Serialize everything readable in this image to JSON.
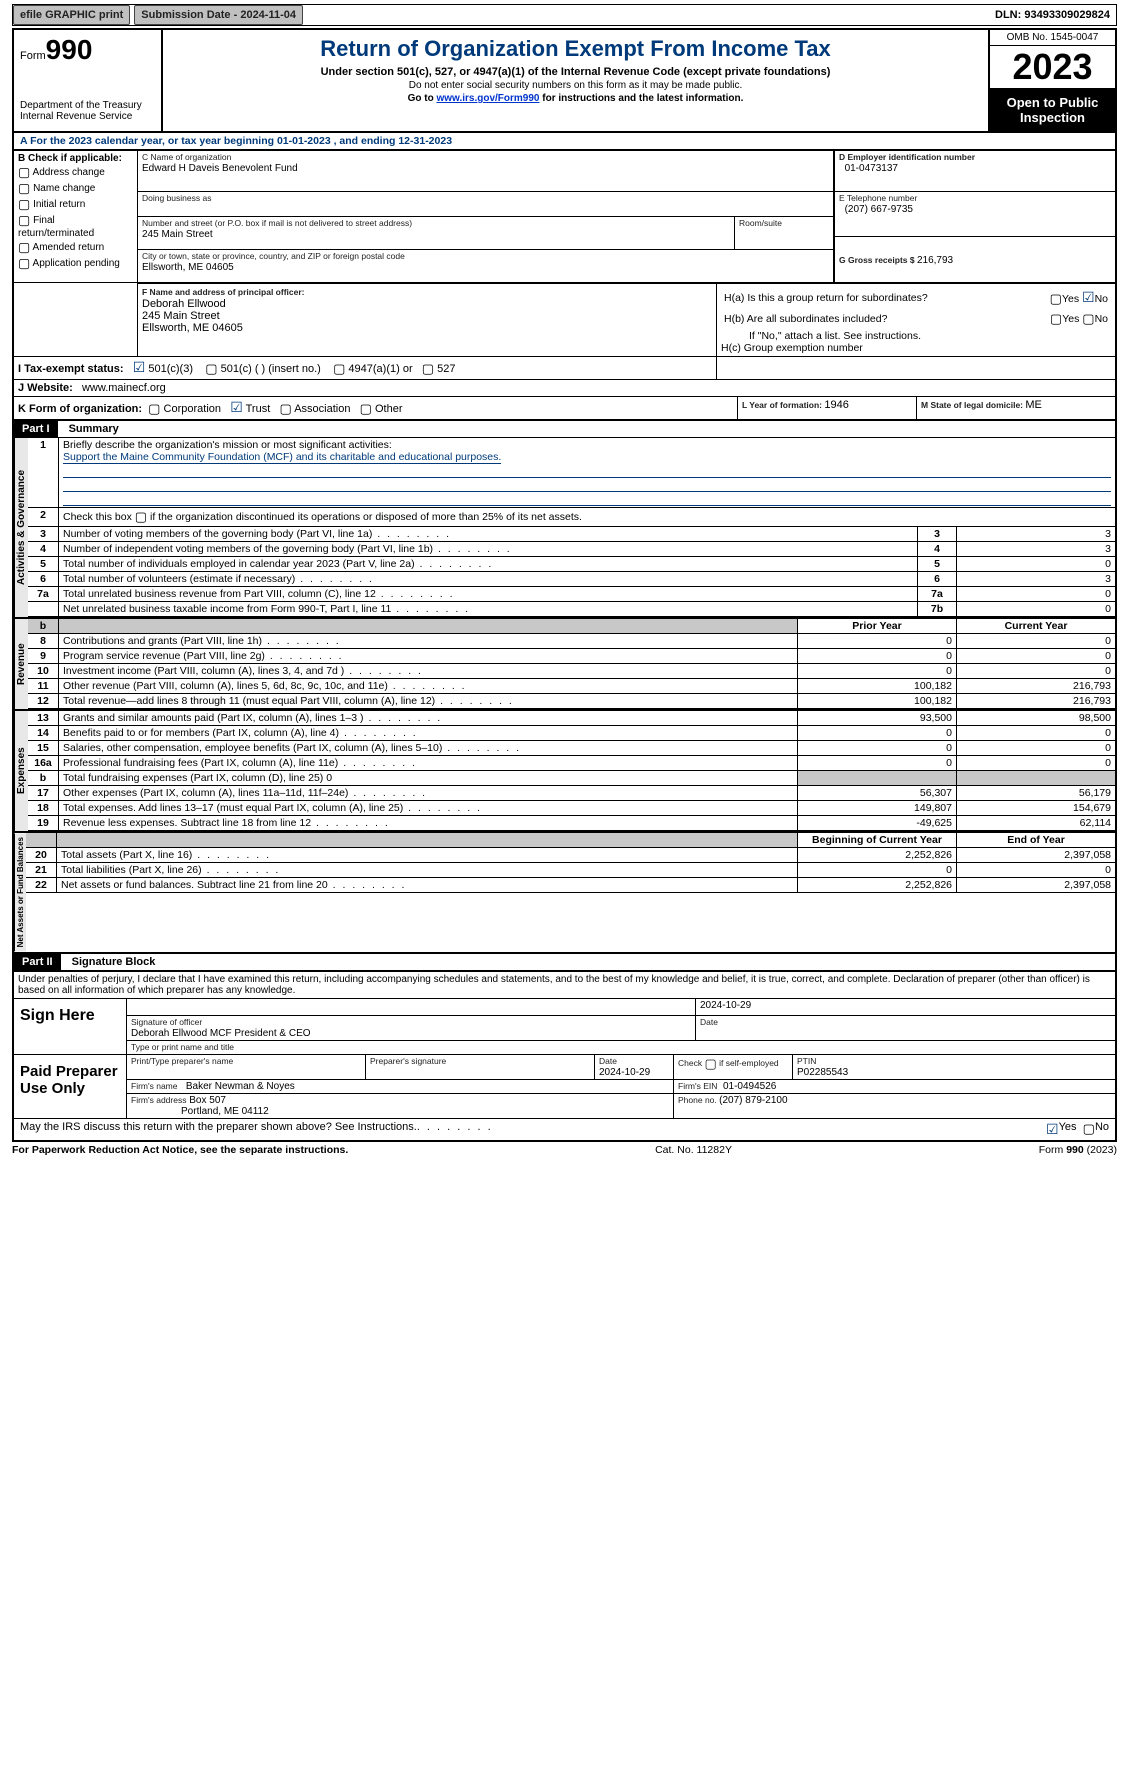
{
  "topbar": {
    "efile": "efile GRAPHIC print",
    "sub_label": "Submission Date - ",
    "sub_date": "2024-11-04",
    "dln_label": "DLN: ",
    "dln": "93493309029824"
  },
  "header": {
    "form_word": "Form",
    "form_num": "990",
    "dept": "Department of the Treasury Internal Revenue Service",
    "title": "Return of Organization Exempt From Income Tax",
    "subtitle": "Under section 501(c), 527, or 4947(a)(1) of the Internal Revenue Code (except private foundations)",
    "ssn_note": "Do not enter social security numbers on this form as it may be made public.",
    "goto_pre": "Go to ",
    "goto_link": "www.irs.gov/Form990",
    "goto_post": " for instructions and the latest information.",
    "omb": "OMB No. 1545-0047",
    "year": "2023",
    "open": "Open to Public Inspection"
  },
  "line_a": "A  For the 2023 calendar year, or tax year beginning 01-01-2023    , and ending 12-31-2023",
  "box_b": {
    "hdr": "B Check if applicable:",
    "items": [
      "Address change",
      "Name change",
      "Initial return",
      "Final return/terminated",
      "Amended return",
      "Application pending"
    ]
  },
  "box_c": {
    "name_lbl": "C Name of organization",
    "name": "Edward H Daveis Benevolent Fund",
    "dba_lbl": "Doing business as",
    "addr_lbl": "Number and street (or P.O. box if mail is not delivered to street address)",
    "addr": "245 Main Street",
    "room_lbl": "Room/suite",
    "city_lbl": "City or town, state or province, country, and ZIP or foreign postal code",
    "city": "Ellsworth, ME  04605"
  },
  "box_d": {
    "lbl": "D Employer identification number",
    "val": "01-0473137"
  },
  "box_e": {
    "lbl": "E Telephone number",
    "val": "(207) 667-9735"
  },
  "box_g": {
    "lbl": "G Gross receipts $ ",
    "val": "216,793"
  },
  "box_f": {
    "lbl": "F  Name and address of principal officer:",
    "name": "Deborah Ellwood",
    "addr1": "245 Main Street",
    "addr2": "Ellsworth, ME  04605"
  },
  "box_h": {
    "a": "H(a)  Is this a group return for subordinates?",
    "b": "H(b)  Are all subordinates included?",
    "note": "If \"No,\" attach a list. See instructions.",
    "c": "H(c)  Group exemption number",
    "yes": "Yes",
    "no": "No"
  },
  "box_i": {
    "lbl": "I  Tax-exempt status:",
    "c3": "501(c)(3)",
    "c": "501(c) (  ) (insert no.)",
    "a1": "4947(a)(1) or",
    "s527": "527"
  },
  "box_j": {
    "lbl": "J  Website:",
    "val": "www.mainecf.org"
  },
  "box_k": {
    "lbl": "K Form of organization:",
    "corp": "Corporation",
    "trust": "Trust",
    "assoc": "Association",
    "other": "Other"
  },
  "box_l": {
    "lbl": "L Year of formation: ",
    "val": "1946"
  },
  "box_m": {
    "lbl": "M State of legal domicile: ",
    "val": "ME"
  },
  "part1": {
    "tag": "Part I",
    "title": "Summary",
    "q1": "Briefly describe the organization's mission or most significant activities:",
    "mission": "Support the Maine Community Foundation (MCF) and its charitable and educational purposes.",
    "q2": "Check this box      if the organization discontinued its operations or disposed of more than 25% of its net assets.",
    "rows_gov": [
      {
        "n": "3",
        "t": "Number of voting members of the governing body (Part VI, line 1a)",
        "c": "3",
        "v": "3"
      },
      {
        "n": "4",
        "t": "Number of independent voting members of the governing body (Part VI, line 1b)",
        "c": "4",
        "v": "3"
      },
      {
        "n": "5",
        "t": "Total number of individuals employed in calendar year 2023 (Part V, line 2a)",
        "c": "5",
        "v": "0"
      },
      {
        "n": "6",
        "t": "Total number of volunteers (estimate if necessary)",
        "c": "6",
        "v": "3"
      },
      {
        "n": "7a",
        "t": "Total unrelated business revenue from Part VIII, column (C), line 12",
        "c": "7a",
        "v": "0"
      },
      {
        "n": "",
        "t": "Net unrelated business taxable income from Form 990-T, Part I, line 11",
        "c": "7b",
        "v": "0"
      }
    ],
    "rev_hdr_prior": "Prior Year",
    "rev_hdr_cur": "Current Year",
    "rows_rev": [
      {
        "n": "8",
        "t": "Contributions and grants (Part VIII, line 1h)",
        "p": "0",
        "c": "0"
      },
      {
        "n": "9",
        "t": "Program service revenue (Part VIII, line 2g)",
        "p": "0",
        "c": "0"
      },
      {
        "n": "10",
        "t": "Investment income (Part VIII, column (A), lines 3, 4, and 7d )",
        "p": "0",
        "c": "0"
      },
      {
        "n": "11",
        "t": "Other revenue (Part VIII, column (A), lines 5, 6d, 8c, 9c, 10c, and 11e)",
        "p": "100,182",
        "c": "216,793"
      },
      {
        "n": "12",
        "t": "Total revenue—add lines 8 through 11 (must equal Part VIII, column (A), line 12)",
        "p": "100,182",
        "c": "216,793"
      }
    ],
    "rows_exp": [
      {
        "n": "13",
        "t": "Grants and similar amounts paid (Part IX, column (A), lines 1–3 )",
        "p": "93,500",
        "c": "98,500"
      },
      {
        "n": "14",
        "t": "Benefits paid to or for members (Part IX, column (A), line 4)",
        "p": "0",
        "c": "0"
      },
      {
        "n": "15",
        "t": "Salaries, other compensation, employee benefits (Part IX, column (A), lines 5–10)",
        "p": "0",
        "c": "0"
      },
      {
        "n": "16a",
        "t": "Professional fundraising fees (Part IX, column (A), line 11e)",
        "p": "0",
        "c": "0"
      },
      {
        "n": "b",
        "t": "Total fundraising expenses (Part IX, column (D), line 25) 0",
        "p": "",
        "c": "",
        "shade": true
      },
      {
        "n": "17",
        "t": "Other expenses (Part IX, column (A), lines 11a–11d, 11f–24e)",
        "p": "56,307",
        "c": "56,179"
      },
      {
        "n": "18",
        "t": "Total expenses. Add lines 13–17 (must equal Part IX, column (A), line 25)",
        "p": "149,807",
        "c": "154,679"
      },
      {
        "n": "19",
        "t": "Revenue less expenses. Subtract line 18 from line 12",
        "p": "-49,625",
        "c": "62,114"
      }
    ],
    "na_hdr_beg": "Beginning of Current Year",
    "na_hdr_end": "End of Year",
    "rows_na": [
      {
        "n": "20",
        "t": "Total assets (Part X, line 16)",
        "p": "2,252,826",
        "c": "2,397,058"
      },
      {
        "n": "21",
        "t": "Total liabilities (Part X, line 26)",
        "p": "0",
        "c": "0"
      },
      {
        "n": "22",
        "t": "Net assets or fund balances. Subtract line 21 from line 20",
        "p": "2,252,826",
        "c": "2,397,058"
      }
    ],
    "vert_gov": "Activities & Governance",
    "vert_rev": "Revenue",
    "vert_exp": "Expenses",
    "vert_na": "Net Assets or Fund Balances"
  },
  "part2": {
    "tag": "Part II",
    "title": "Signature Block",
    "decl": "Under penalties of perjury, I declare that I have examined this return, including accompanying schedules and statements, and to the best of my knowledge and belief, it is true, correct, and complete. Declaration of preparer (other than officer) is based on all information of which preparer has any knowledge.",
    "sign_here": "Sign Here",
    "sig_officer_lbl": "Signature of officer",
    "sig_officer": "Deborah Ellwood  MCF President & CEO",
    "sig_name_lbl": "Type or print name and title",
    "date_lbl": "Date",
    "date1": "2024-10-29",
    "paid": "Paid Preparer Use Only",
    "prep_name_lbl": "Print/Type preparer's name",
    "prep_sig_lbl": "Preparer's signature",
    "prep_date": "2024-10-29",
    "self_emp": "Check      if self-employed",
    "ptin_lbl": "PTIN",
    "ptin": "P02285543",
    "firm_name_lbl": "Firm's name",
    "firm_name": "Baker Newman & Noyes",
    "firm_ein_lbl": "Firm's EIN",
    "firm_ein": "01-0494526",
    "firm_addr_lbl": "Firm's address",
    "firm_addr1": "Box 507",
    "firm_addr2": "Portland, ME  04112",
    "firm_phone_lbl": "Phone no. ",
    "firm_phone": "(207) 879-2100",
    "discuss": "May the IRS discuss this return with the preparer shown above? See Instructions.",
    "yes": "Yes",
    "no": "No"
  },
  "footer": {
    "left": "For Paperwork Reduction Act Notice, see the separate instructions.",
    "mid": "Cat. No. 11282Y",
    "right_pre": "Form ",
    "right_form": "990",
    "right_post": " (2023)"
  }
}
